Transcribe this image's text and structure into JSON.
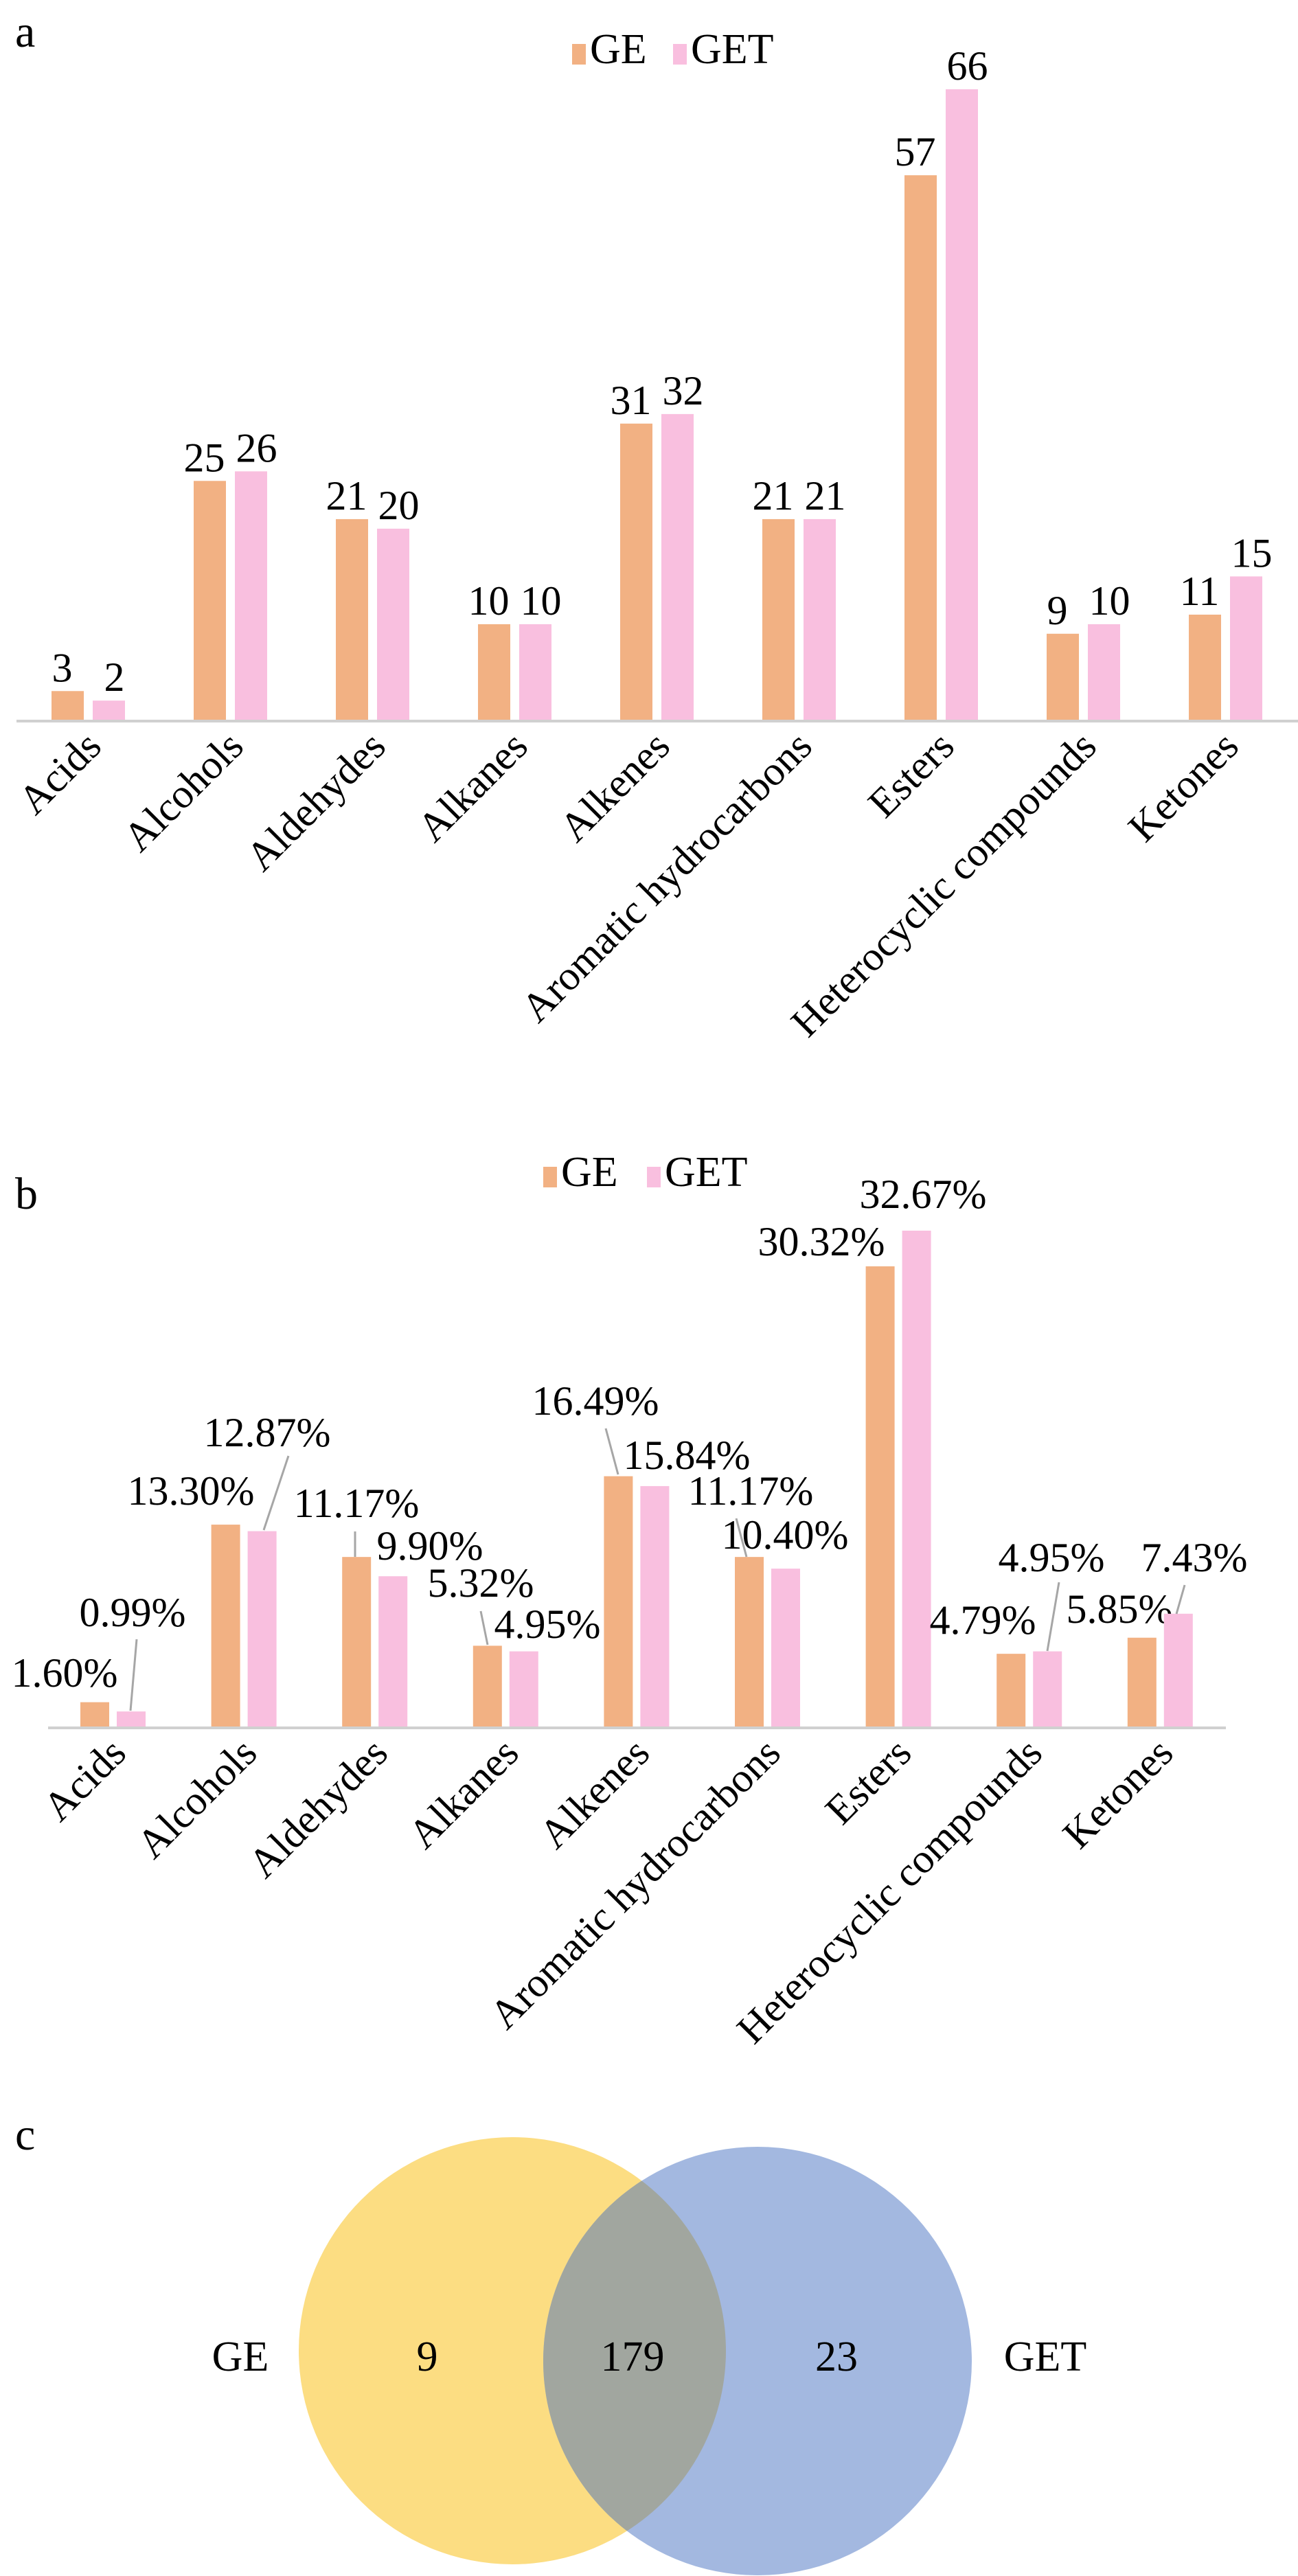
{
  "colors": {
    "GE": "#F2B183",
    "GET": "#F9BFDF",
    "axis": "#D0D0D0",
    "venn_GE": "#FCDD82",
    "venn_GET": "#A3B8E0",
    "venn_overlap": "#A1A69F"
  },
  "chart_data": [
    {
      "panel": "a",
      "type": "bar",
      "categories": [
        "Acids",
        "Alcohols",
        "Aldehydes",
        "Alkanes",
        "Alkenes",
        "Aromatic hydrocarbons",
        "Esters",
        "Heterocyclic compounds",
        "Ketones"
      ],
      "series": [
        {
          "name": "GE",
          "values": [
            3,
            25,
            21,
            10,
            31,
            21,
            57,
            9,
            11
          ],
          "labels": [
            "3",
            "25",
            "21",
            "10",
            "31",
            "21",
            "57",
            "9",
            "11"
          ]
        },
        {
          "name": "GET",
          "values": [
            2,
            26,
            20,
            10,
            32,
            21,
            66,
            10,
            15
          ],
          "labels": [
            "2",
            "26",
            "20",
            "10",
            "32",
            "21",
            "66",
            "10",
            "15"
          ]
        }
      ],
      "ylim": [
        0,
        66
      ],
      "grid": false,
      "legend": "top-center"
    },
    {
      "panel": "b",
      "type": "bar",
      "categories": [
        "Acids",
        "Alcohols",
        "Aldehydes",
        "Alkanes",
        "Alkenes",
        "Aromatic hydrocarbons",
        "Esters",
        "Heterocyclic compounds",
        "Ketones"
      ],
      "series": [
        {
          "name": "GE",
          "values": [
            1.6,
            13.3,
            11.17,
            5.32,
            16.49,
            11.17,
            30.32,
            4.79,
            5.85
          ],
          "labels": [
            "1.60%",
            "13.30%",
            "11.17%",
            "5.32%",
            "16.49%",
            "11.17%",
            "30.32%",
            "4.79%",
            "5.85%"
          ]
        },
        {
          "name": "GET",
          "values": [
            0.99,
            12.87,
            9.9,
            4.95,
            15.84,
            10.4,
            32.67,
            4.95,
            7.43
          ],
          "labels": [
            "0.99%",
            "12.87%",
            "9.90%",
            "4.95%",
            "15.84%",
            "10.40%",
            "32.67%",
            "4.95%",
            "7.43%"
          ]
        }
      ],
      "ylim": [
        0,
        32.67
      ],
      "grid": false,
      "legend": "top-center"
    },
    {
      "panel": "c",
      "type": "venn",
      "sets": [
        "GE",
        "GET"
      ],
      "only_GE": "9",
      "shared": "179",
      "only_GET": "23"
    }
  ]
}
